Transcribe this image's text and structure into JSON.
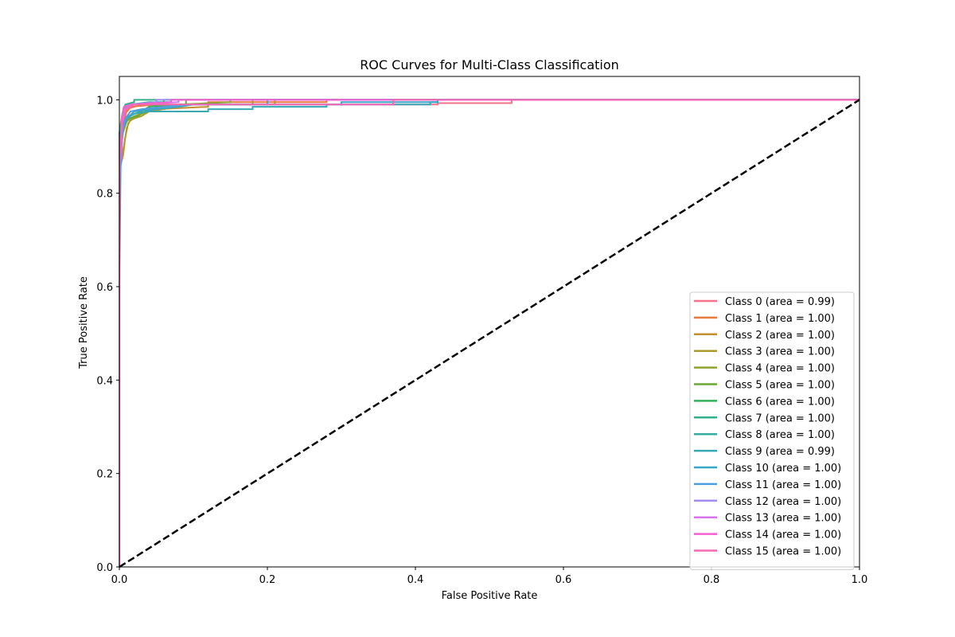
{
  "chart_data": {
    "type": "line",
    "title": "ROC Curves for Multi-Class Classification",
    "xlabel": "False Positive Rate",
    "ylabel": "True Positive Rate",
    "xlim": [
      0.0,
      1.0
    ],
    "ylim": [
      0.0,
      1.05
    ],
    "xticks": [
      "0.0",
      "0.2",
      "0.4",
      "0.6",
      "0.8",
      "1.0"
    ],
    "yticks": [
      "0.0",
      "0.2",
      "0.4",
      "0.6",
      "0.8",
      "1.0"
    ],
    "legend_position": "lower-right",
    "grid": false,
    "series": [
      {
        "name": "Class 0 (area = 0.99)",
        "color": "#f77189",
        "points": [
          [
            0,
            0
          ],
          [
            0,
            0.82
          ],
          [
            0.003,
            0.9
          ],
          [
            0.006,
            0.95
          ],
          [
            0.01,
            0.98
          ],
          [
            0.03,
            0.99
          ],
          [
            0.43,
            0.99
          ],
          [
            0.43,
            0.993
          ],
          [
            0.53,
            0.993
          ],
          [
            0.53,
            1.0
          ],
          [
            1.0,
            1.0
          ]
        ]
      },
      {
        "name": "Class 1 (area = 1.00)",
        "color": "#e8793b",
        "points": [
          [
            0,
            0
          ],
          [
            0,
            0.87
          ],
          [
            0.004,
            0.93
          ],
          [
            0.008,
            0.97
          ],
          [
            0.015,
            0.985
          ],
          [
            0.05,
            0.99
          ],
          [
            0.12,
            0.99
          ],
          [
            0.12,
            0.995
          ],
          [
            0.28,
            0.995
          ],
          [
            0.28,
            1.0
          ],
          [
            1.0,
            1.0
          ]
        ]
      },
      {
        "name": "Class 2 (area = 1.00)",
        "color": "#c68f31",
        "points": [
          [
            0,
            0
          ],
          [
            0,
            0.85
          ],
          [
            0.005,
            0.88
          ],
          [
            0.008,
            0.92
          ],
          [
            0.012,
            0.95
          ],
          [
            0.02,
            0.965
          ],
          [
            0.03,
            0.97
          ],
          [
            0.05,
            0.98
          ],
          [
            0.12,
            0.985
          ],
          [
            0.12,
            0.99
          ],
          [
            0.21,
            0.99
          ],
          [
            0.21,
            1.0
          ],
          [
            1.0,
            1.0
          ]
        ]
      },
      {
        "name": "Class 3 (area = 1.00)",
        "color": "#ac9a2f",
        "points": [
          [
            0,
            0
          ],
          [
            0,
            0.86
          ],
          [
            0.006,
            0.9
          ],
          [
            0.01,
            0.94
          ],
          [
            0.014,
            0.955
          ],
          [
            0.02,
            0.96
          ],
          [
            0.03,
            0.965
          ],
          [
            0.04,
            0.975
          ],
          [
            0.06,
            0.98
          ],
          [
            0.1,
            0.99
          ],
          [
            0.18,
            0.99
          ],
          [
            0.18,
            1.0
          ],
          [
            1.0,
            1.0
          ]
        ]
      },
      {
        "name": "Class 4 (area = 1.00)",
        "color": "#91a231",
        "points": [
          [
            0,
            0
          ],
          [
            0,
            0.88
          ],
          [
            0.005,
            0.93
          ],
          [
            0.01,
            0.955
          ],
          [
            0.02,
            0.965
          ],
          [
            0.03,
            0.97
          ],
          [
            0.05,
            0.985
          ],
          [
            0.08,
            0.99
          ],
          [
            0.15,
            0.995
          ],
          [
            0.15,
            1.0
          ],
          [
            1.0,
            1.0
          ]
        ]
      },
      {
        "name": "Class 5 (area = 1.00)",
        "color": "#6ba833",
        "points": [
          [
            0,
            0
          ],
          [
            0,
            0.9
          ],
          [
            0.006,
            0.94
          ],
          [
            0.012,
            0.96
          ],
          [
            0.025,
            0.965
          ],
          [
            0.035,
            0.975
          ],
          [
            0.05,
            0.985
          ],
          [
            0.09,
            0.99
          ],
          [
            0.09,
            1.0
          ],
          [
            1.0,
            1.0
          ]
        ]
      },
      {
        "name": "Class 6 (area = 1.00)",
        "color": "#33b05c",
        "points": [
          [
            0,
            0
          ],
          [
            0,
            0.91
          ],
          [
            0.005,
            0.95
          ],
          [
            0.012,
            0.965
          ],
          [
            0.02,
            0.97
          ],
          [
            0.03,
            0.975
          ],
          [
            0.04,
            0.985
          ],
          [
            0.06,
            0.99
          ],
          [
            0.06,
            1.0
          ],
          [
            1.0,
            1.0
          ]
        ]
      },
      {
        "name": "Class 7 (area = 1.00)",
        "color": "#35ad8b",
        "points": [
          [
            0,
            0
          ],
          [
            0,
            0.93
          ],
          [
            0.004,
            0.97
          ],
          [
            0.008,
            0.99
          ],
          [
            0.02,
            0.995
          ],
          [
            0.02,
            1.0
          ],
          [
            1.0,
            1.0
          ]
        ]
      },
      {
        "name": "Class 8 (area = 1.00)",
        "color": "#36ab9e",
        "points": [
          [
            0,
            0
          ],
          [
            0,
            0.92
          ],
          [
            0.004,
            0.96
          ],
          [
            0.008,
            0.985
          ],
          [
            0.015,
            0.99
          ],
          [
            0.04,
            0.995
          ],
          [
            0.07,
            0.995
          ],
          [
            0.07,
            1.0
          ],
          [
            1.0,
            1.0
          ]
        ]
      },
      {
        "name": "Class 9 (area = 0.99)",
        "color": "#38a9b3",
        "points": [
          [
            0,
            0
          ],
          [
            0,
            0.9
          ],
          [
            0.005,
            0.94
          ],
          [
            0.01,
            0.96
          ],
          [
            0.02,
            0.97
          ],
          [
            0.04,
            0.975
          ],
          [
            0.12,
            0.975
          ],
          [
            0.12,
            0.98
          ],
          [
            0.18,
            0.98
          ],
          [
            0.18,
            0.985
          ],
          [
            0.28,
            0.985
          ],
          [
            0.28,
            0.99
          ],
          [
            0.42,
            0.99
          ],
          [
            0.42,
            0.995
          ],
          [
            0.43,
            0.995
          ],
          [
            0.43,
            1.0
          ],
          [
            1.0,
            1.0
          ]
        ]
      },
      {
        "name": "Class 10 (area = 1.00)",
        "color": "#3aa5c7",
        "points": [
          [
            0,
            0
          ],
          [
            0,
            0.6
          ],
          [
            0.002,
            0.9
          ],
          [
            0.005,
            0.94
          ],
          [
            0.01,
            0.96
          ],
          [
            0.02,
            0.975
          ],
          [
            0.05,
            0.98
          ],
          [
            0.08,
            0.985
          ],
          [
            0.1,
            0.99
          ],
          [
            0.3,
            0.99
          ],
          [
            0.3,
            0.995
          ],
          [
            0.43,
            0.995
          ],
          [
            0.43,
            1.0
          ],
          [
            1.0,
            1.0
          ]
        ]
      },
      {
        "name": "Class 11 (area = 1.00)",
        "color": "#4b9fe0",
        "points": [
          [
            0,
            0
          ],
          [
            0,
            0.8
          ],
          [
            0.004,
            0.93
          ],
          [
            0.008,
            0.96
          ],
          [
            0.015,
            0.975
          ],
          [
            0.03,
            0.98
          ],
          [
            0.06,
            0.985
          ],
          [
            0.09,
            0.99
          ],
          [
            0.2,
            0.99
          ],
          [
            0.2,
            1.0
          ],
          [
            1.0,
            1.0
          ]
        ]
      },
      {
        "name": "Class 12 (area = 1.00)",
        "color": "#a48cf4",
        "points": [
          [
            0,
            0
          ],
          [
            0,
            0.85
          ],
          [
            0.003,
            0.95
          ],
          [
            0.007,
            0.98
          ],
          [
            0.015,
            0.99
          ],
          [
            0.05,
            0.995
          ],
          [
            0.05,
            1.0
          ],
          [
            1.0,
            1.0
          ]
        ]
      },
      {
        "name": "Class 13 (area = 1.00)",
        "color": "#d775ec",
        "points": [
          [
            0,
            0
          ],
          [
            0,
            0.83
          ],
          [
            0.004,
            0.95
          ],
          [
            0.008,
            0.98
          ],
          [
            0.02,
            0.99
          ],
          [
            0.08,
            0.995
          ],
          [
            0.08,
            1.0
          ],
          [
            1.0,
            1.0
          ]
        ]
      },
      {
        "name": "Class 14 (area = 1.00)",
        "color": "#f45fd1",
        "points": [
          [
            0,
            0
          ],
          [
            0,
            0.86
          ],
          [
            0.003,
            0.96
          ],
          [
            0.006,
            0.985
          ],
          [
            0.015,
            0.99
          ],
          [
            0.07,
            0.995
          ],
          [
            0.07,
            1.0
          ],
          [
            1.0,
            1.0
          ]
        ]
      },
      {
        "name": "Class 15 (area = 1.00)",
        "color": "#f668b3",
        "points": [
          [
            0,
            0
          ],
          [
            0,
            0.84
          ],
          [
            0.003,
            0.95
          ],
          [
            0.007,
            0.98
          ],
          [
            0.02,
            0.99
          ],
          [
            0.37,
            0.99
          ],
          [
            0.37,
            1.0
          ],
          [
            1.0,
            1.0
          ]
        ]
      }
    ],
    "reference_line": {
      "style": "dashed",
      "color": "#000000",
      "points": [
        [
          0,
          0
        ],
        [
          1,
          1
        ]
      ]
    }
  }
}
